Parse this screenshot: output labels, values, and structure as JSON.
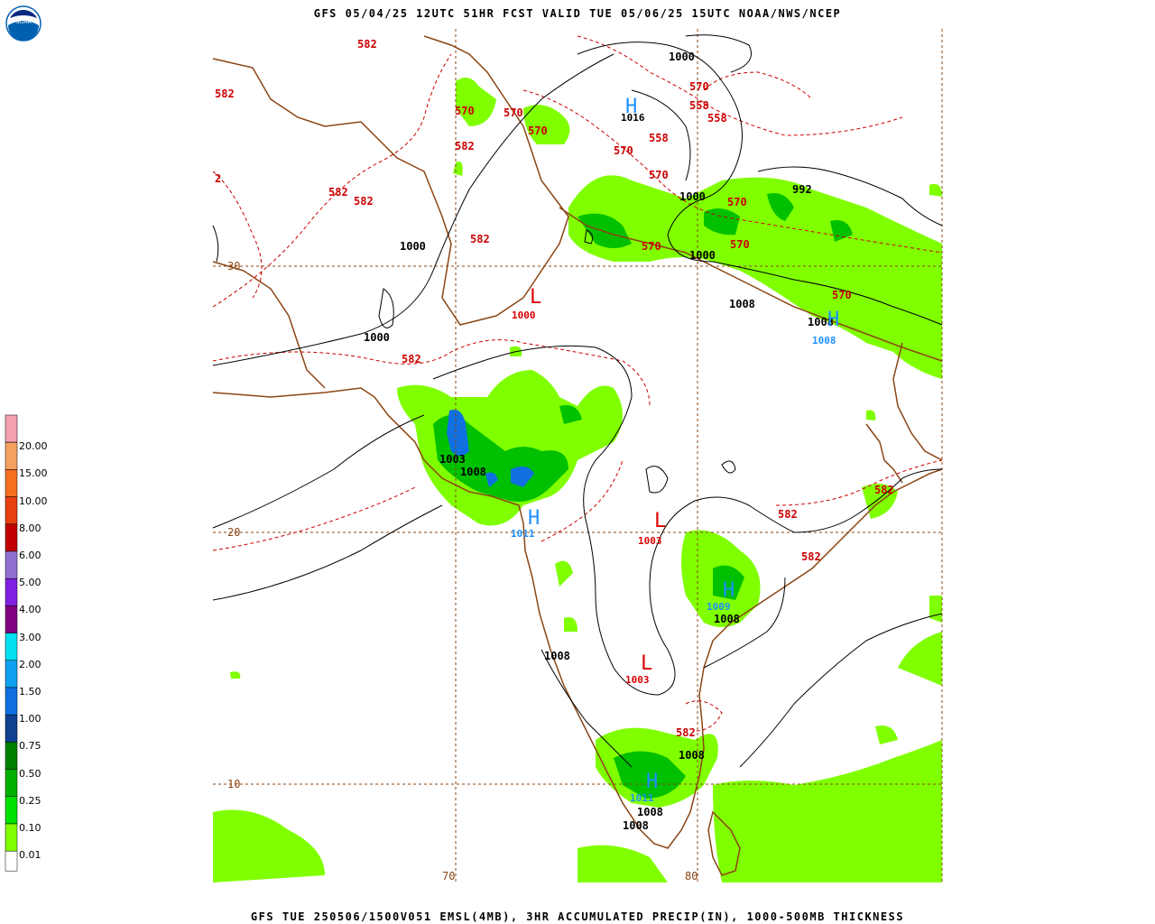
{
  "header": {
    "title": "GFS 05/04/25 12UTC 51HR FCST VALID TUE 05/06/25 15UTC NOAA/NWS/NCEP",
    "logo_text": "NOAA"
  },
  "footer": {
    "title": "GFS TUE 250506/1500V051 EMSL(4MB), 3HR ACCUMULATED PRECIP(IN), 1000-500MB THICKNESS"
  },
  "colors": {
    "thickness": "#cc0000",
    "isobar": "#000000",
    "coast": "#8b4513",
    "grid": "#8b4513",
    "high": "#1e90ff",
    "low": "#dd0000",
    "precip_light": "#80ff00"
  },
  "legend": {
    "items": [
      {
        "label": "20.00",
        "color": "#f4a0b0"
      },
      {
        "label": "15.00",
        "color": "#f4a060"
      },
      {
        "label": "10.00",
        "color": "#f47020"
      },
      {
        "label": "8.00",
        "color": "#e84010"
      },
      {
        "label": "6.00",
        "color": "#c00000"
      },
      {
        "label": "5.00",
        "color": "#9070d0"
      },
      {
        "label": "4.00",
        "color": "#8020e0"
      },
      {
        "label": "3.00",
        "color": "#800080"
      },
      {
        "label": "2.00",
        "color": "#00e0f0"
      },
      {
        "label": "1.50",
        "color": "#10a0f0"
      },
      {
        "label": "1.00",
        "color": "#1070e0"
      },
      {
        "label": "0.75",
        "color": "#104090"
      },
      {
        "label": "0.50",
        "color": "#008000"
      },
      {
        "label": "0.25",
        "color": "#00b000"
      },
      {
        "label": "0.10",
        "color": "#00e000"
      },
      {
        "label": "0.01",
        "color": "#80ff00"
      },
      {
        "label": "",
        "color": "#ffffff"
      }
    ]
  },
  "grid_labels": {
    "lat": [
      "30",
      "20",
      "10"
    ],
    "lon": [
      "70",
      "80"
    ]
  },
  "thickness_labels": [
    "582",
    "582",
    "582",
    "2",
    "582",
    "582",
    "582",
    "582",
    "570",
    "570",
    "570",
    "570",
    "570",
    "570",
    "570",
    "570",
    "570",
    "558",
    "558",
    "558",
    "582",
    "582",
    "582",
    "582"
  ],
  "isobar_labels": [
    "1000",
    "1000",
    "1000",
    "1000",
    "1000",
    "992",
    "1008",
    "1008",
    "1008",
    "1008",
    "1008",
    "1003",
    "1008",
    "1008",
    "1008",
    "1008",
    "1008",
    "1008"
  ],
  "centers": [
    {
      "type": "H",
      "value": "1016"
    },
    {
      "type": "L",
      "value": "1000"
    },
    {
      "type": "H",
      "value": "1011"
    },
    {
      "type": "L",
      "value": "1003"
    },
    {
      "type": "H",
      "value": "1009"
    },
    {
      "type": "L",
      "value": "1003"
    },
    {
      "type": "H",
      "value": "1011"
    },
    {
      "type": "H",
      "value": "1008"
    }
  ]
}
